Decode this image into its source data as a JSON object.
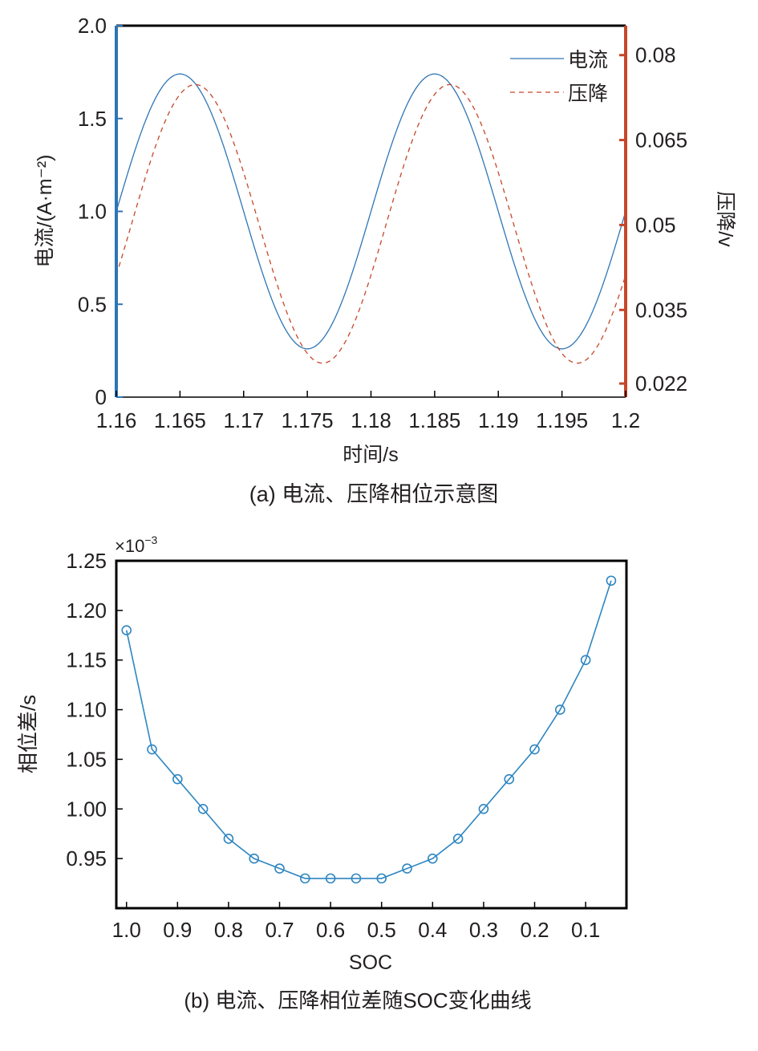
{
  "colors": {
    "current": "#2e75b6",
    "voltage": "#c5472a",
    "soc_line": "#2e86c1",
    "right_axis": "#c5472a",
    "left_axis": "#2e75b6"
  },
  "chart_data": [
    {
      "type": "line",
      "caption": "(a) 电流、压降相位示意图",
      "xlabel": "时间/s",
      "ylabel": "电流/(A·m⁻²)",
      "y2label": "压降/v",
      "xlim": [
        1.16,
        1.2
      ],
      "ylim": [
        0,
        2.0
      ],
      "y2lim": [
        0.0196,
        0.0852
      ],
      "xticks": [
        1.16,
        1.165,
        1.17,
        1.175,
        1.18,
        1.185,
        1.19,
        1.195,
        1.2
      ],
      "xtick_labels": [
        "1.16",
        "1.165",
        "1.17",
        "1.175",
        "1.18",
        "1.185",
        "1.19",
        "1.195",
        "1.2"
      ],
      "yticks": [
        0,
        0.5,
        1.0,
        1.5,
        2.0
      ],
      "ytick_labels": [
        "0",
        "0.5",
        "1.0",
        "1.5",
        "2.0"
      ],
      "y2ticks": [
        0.022,
        0.035,
        0.05,
        0.065,
        0.08
      ],
      "y2tick_labels": [
        "0.022",
        "0.035",
        "0.05",
        "0.065",
        "0.08"
      ],
      "legend_position": "top-right",
      "series": [
        {
          "name": "电流",
          "axis": "left",
          "style": "solid",
          "function": "sine",
          "mean": 1.0,
          "amplitude": 0.74,
          "frequency_hz": 50,
          "phase_delay_s": 0
        },
        {
          "name": "压降",
          "axis": "right",
          "style": "dashed",
          "function": "sine",
          "mean": 0.0502,
          "amplitude": 0.0246,
          "frequency_hz": 50,
          "phase_delay_s": 0.0012
        }
      ]
    },
    {
      "type": "line",
      "caption": "(b) 电流、压降相位差随SOC变化曲线",
      "xlabel": "SOC",
      "ylabel": "相位差/s",
      "y_multiplier_label": "×10",
      "y_multiplier_exp": "−3",
      "xlim": [
        1.02,
        0.02
      ],
      "ylim": [
        0.9,
        1.25
      ],
      "xticks": [
        1.0,
        0.9,
        0.8,
        0.7,
        0.6,
        0.5,
        0.4,
        0.3,
        0.2,
        0.1
      ],
      "xtick_labels": [
        "1.0",
        "0.9",
        "0.8",
        "0.7",
        "0.6",
        "0.5",
        "0.4",
        "0.3",
        "0.2",
        "0.1"
      ],
      "yticks": [
        0.95,
        1.0,
        1.05,
        1.1,
        1.15,
        1.2,
        1.25
      ],
      "ytick_labels": [
        "0.95",
        "1.00",
        "1.05",
        "1.10",
        "1.15",
        "1.20",
        "1.25"
      ],
      "marker": "circle",
      "series": [
        {
          "x": [
            1.0,
            0.95,
            0.9,
            0.85,
            0.8,
            0.75,
            0.7,
            0.65,
            0.6,
            0.55,
            0.5,
            0.45,
            0.4,
            0.35,
            0.3,
            0.25,
            0.2,
            0.15,
            0.1,
            0.05
          ],
          "y": [
            1.18,
            1.06,
            1.03,
            1.0,
            0.97,
            0.95,
            0.94,
            0.93,
            0.93,
            0.93,
            0.93,
            0.94,
            0.95,
            0.97,
            1.0,
            1.03,
            1.06,
            1.1,
            1.15,
            1.23
          ]
        }
      ]
    }
  ]
}
